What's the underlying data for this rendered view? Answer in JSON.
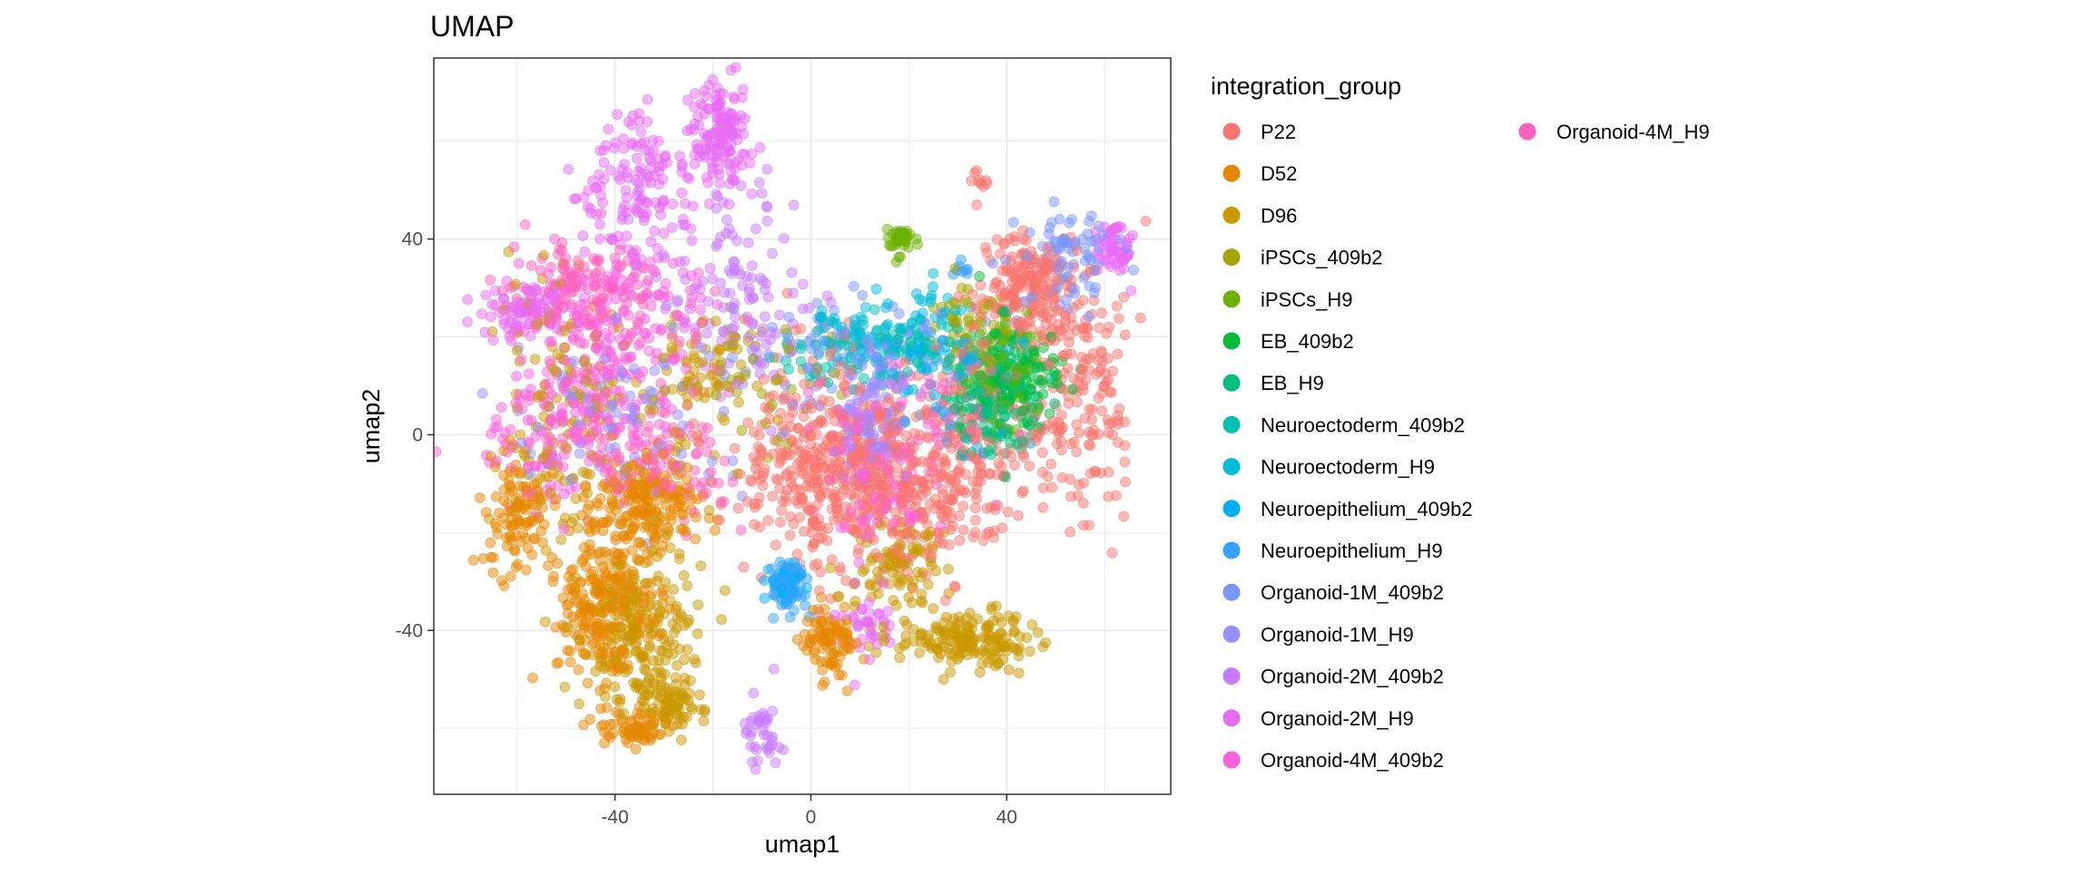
{
  "chart_data": {
    "type": "scatter",
    "title": "UMAP",
    "xlabel": "umap1",
    "ylabel": "umap2",
    "xlim": [
      -77,
      73.5
    ],
    "ylim": [
      -73.5,
      77
    ],
    "x_ticks": [
      -40,
      0,
      40
    ],
    "y_ticks": [
      -40,
      0,
      40
    ],
    "grid": true,
    "point_alpha": 0.5,
    "legend": {
      "title": "integration_group",
      "placement": "right",
      "columns": 2
    },
    "series": [
      {
        "name": "P22",
        "color": "#F8766D",
        "clusters": [
          {
            "cx": 4,
            "cy": -6,
            "sx": 9,
            "sy": 10,
            "n": 420
          },
          {
            "cx": 22,
            "cy": -12,
            "sx": 8,
            "sy": 8,
            "n": 200
          },
          {
            "cx": 44,
            "cy": 30,
            "sx": 5,
            "sy": 6,
            "n": 200
          },
          {
            "cx": 56,
            "cy": 10,
            "sx": 5,
            "sy": 14,
            "n": 160
          },
          {
            "cx": 34,
            "cy": 0,
            "sx": 8,
            "sy": 8,
            "n": 120
          },
          {
            "cx": 35,
            "cy": 51,
            "sx": 1,
            "sy": 1.5,
            "n": 10
          }
        ]
      },
      {
        "name": "D52",
        "color": "#E58700",
        "clusters": [
          {
            "cx": -42,
            "cy": -35,
            "sx": 5,
            "sy": 8,
            "n": 260
          },
          {
            "cx": -34,
            "cy": -14,
            "sx": 6,
            "sy": 5,
            "n": 200
          },
          {
            "cx": -60,
            "cy": -15,
            "sx": 4,
            "sy": 6,
            "n": 110
          },
          {
            "cx": 4,
            "cy": -42,
            "sx": 3,
            "sy": 4,
            "n": 90
          },
          {
            "cx": -36,
            "cy": -60,
            "sx": 4,
            "sy": 2,
            "n": 60
          }
        ]
      },
      {
        "name": "D96",
        "color": "#C99800",
        "clusters": [
          {
            "cx": -35,
            "cy": -42,
            "sx": 6,
            "sy": 8,
            "n": 200
          },
          {
            "cx": -28,
            "cy": -55,
            "sx": 3,
            "sy": 3,
            "n": 70
          },
          {
            "cx": 32,
            "cy": -42,
            "sx": 6,
            "sy": 3,
            "n": 170
          },
          {
            "cx": 18,
            "cy": -28,
            "sx": 5,
            "sy": 5,
            "n": 90
          },
          {
            "cx": -50,
            "cy": 5,
            "sx": 6,
            "sy": 14,
            "n": 120
          },
          {
            "cx": -22,
            "cy": 12,
            "sx": 6,
            "sy": 8,
            "n": 80
          }
        ]
      },
      {
        "name": "iPSCs_409b2",
        "color": "#A3A500",
        "clusters": [
          {
            "cx": 33,
            "cy": 22,
            "sx": 4,
            "sy": 4,
            "n": 60
          },
          {
            "cx": -10,
            "cy": 12,
            "sx": 8,
            "sy": 6,
            "n": 40
          }
        ]
      },
      {
        "name": "iPSCs_H9",
        "color": "#6BB100",
        "clusters": [
          {
            "cx": 18,
            "cy": 40,
            "sx": 1.5,
            "sy": 1.5,
            "n": 40
          },
          {
            "cx": 38,
            "cy": 12,
            "sx": 4,
            "sy": 6,
            "n": 60
          }
        ]
      },
      {
        "name": "EB_409b2",
        "color": "#00BA38",
        "clusters": [
          {
            "cx": 42,
            "cy": 12,
            "sx": 5,
            "sy": 6,
            "n": 140
          }
        ]
      },
      {
        "name": "EB_H9",
        "color": "#00BF7D",
        "clusters": [
          {
            "cx": 38,
            "cy": 6,
            "sx": 5,
            "sy": 5,
            "n": 120
          }
        ]
      },
      {
        "name": "Neuroectoderm_409b2",
        "color": "#00C0AF",
        "clusters": [
          {
            "cx": 20,
            "cy": 18,
            "sx": 4,
            "sy": 3,
            "n": 60
          },
          {
            "cx": 5,
            "cy": 16,
            "sx": 6,
            "sy": 3,
            "n": 40
          }
        ]
      },
      {
        "name": "Neuroectoderm_H9",
        "color": "#00BCD8",
        "clusters": [
          {
            "cx": 10,
            "cy": 20,
            "sx": 6,
            "sy": 3,
            "n": 60
          },
          {
            "cx": 25,
            "cy": 25,
            "sx": 3,
            "sy": 3,
            "n": 20
          }
        ]
      },
      {
        "name": "Neuroepithelium_409b2",
        "color": "#00B0F6",
        "clusters": [
          {
            "cx": 28,
            "cy": 12,
            "sx": 8,
            "sy": 8,
            "n": 80
          },
          {
            "cx": -5,
            "cy": -30,
            "sx": 2,
            "sy": 2,
            "n": 40
          }
        ]
      },
      {
        "name": "Neuroepithelium_H9",
        "color": "#35A2FF",
        "clusters": [
          {
            "cx": -5,
            "cy": -31,
            "sx": 2,
            "sy": 2.5,
            "n": 70
          },
          {
            "cx": 30,
            "cy": 34,
            "sx": 1,
            "sy": 1,
            "n": 8
          }
        ]
      },
      {
        "name": "Organoid-1M_409b2",
        "color": "#7996FF",
        "clusters": [
          {
            "cx": 52,
            "cy": 36,
            "sx": 5,
            "sy": 5,
            "n": 80
          },
          {
            "cx": 12,
            "cy": 18,
            "sx": 10,
            "sy": 6,
            "n": 80
          }
        ]
      },
      {
        "name": "Organoid-1M_H9",
        "color": "#9590FF",
        "clusters": [
          {
            "cx": -35,
            "cy": 5,
            "sx": 12,
            "sy": 10,
            "n": 100
          },
          {
            "cx": 12,
            "cy": 5,
            "sx": 5,
            "sy": 6,
            "n": 60
          }
        ]
      },
      {
        "name": "Organoid-2M_409b2",
        "color": "#C77CFF",
        "clusters": [
          {
            "cx": -15,
            "cy": 30,
            "sx": 8,
            "sy": 10,
            "n": 120
          },
          {
            "cx": -10,
            "cy": -60,
            "sx": 2,
            "sy": 5,
            "n": 40
          },
          {
            "cx": 12,
            "cy": 0,
            "sx": 5,
            "sy": 8,
            "n": 60
          }
        ]
      },
      {
        "name": "Organoid-2M_H9",
        "color": "#E76BF3",
        "clusters": [
          {
            "cx": -18,
            "cy": 62,
            "sx": 3,
            "sy": 6,
            "n": 140
          },
          {
            "cx": -35,
            "cy": 50,
            "sx": 6,
            "sy": 8,
            "n": 150
          },
          {
            "cx": -58,
            "cy": 25,
            "sx": 4,
            "sy": 3,
            "n": 90
          },
          {
            "cx": 62,
            "cy": 38,
            "sx": 2,
            "sy": 3,
            "n": 60
          },
          {
            "cx": 12,
            "cy": -40,
            "sx": 3,
            "sy": 4,
            "n": 40
          }
        ]
      },
      {
        "name": "Organoid-4M_409b2",
        "color": "#FA62DB",
        "clusters": [
          {
            "cx": -40,
            "cy": 20,
            "sx": 10,
            "sy": 8,
            "n": 200
          },
          {
            "cx": -50,
            "cy": 0,
            "sx": 8,
            "sy": 8,
            "n": 150
          },
          {
            "cx": 15,
            "cy": -10,
            "sx": 6,
            "sy": 8,
            "n": 80
          }
        ]
      },
      {
        "name": "Organoid-4M_H9",
        "color": "#FF62BC",
        "clusters": [
          {
            "cx": -45,
            "cy": 30,
            "sx": 8,
            "sy": 5,
            "n": 120
          },
          {
            "cx": -30,
            "cy": -5,
            "sx": 8,
            "sy": 6,
            "n": 100
          },
          {
            "cx": 25,
            "cy": 5,
            "sx": 8,
            "sy": 6,
            "n": 80
          }
        ]
      }
    ]
  }
}
